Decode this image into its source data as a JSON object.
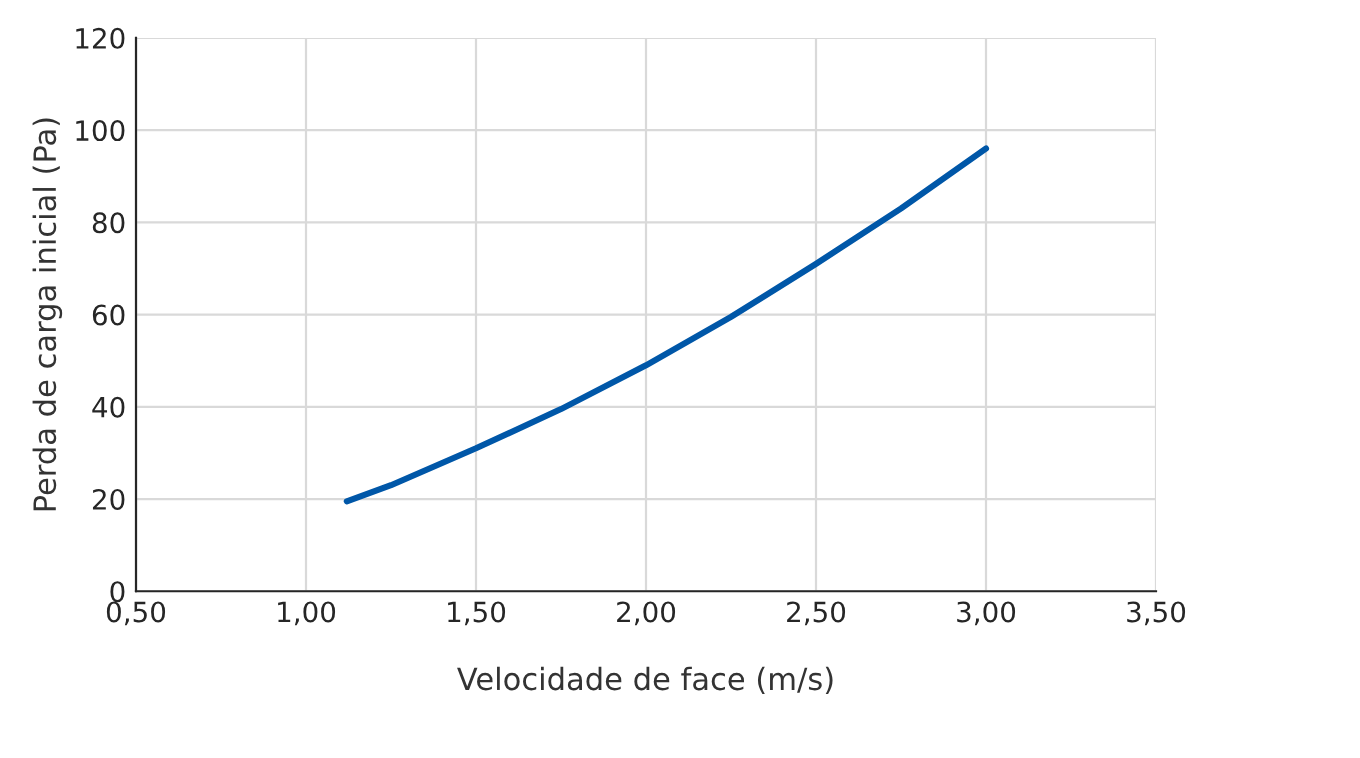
{
  "chart_data": {
    "type": "line",
    "xlabel": "Velocidade de face (m/s)",
    "ylabel": "Perda de carga inicial (Pa)",
    "x": [
      1.12,
      1.25,
      1.5,
      1.75,
      2.0,
      2.25,
      2.5,
      2.75,
      3.0
    ],
    "series": [
      {
        "color": "#0057a8",
        "values": [
          19.5,
          23,
          31,
          39.5,
          49,
          59.5,
          71,
          83,
          96
        ]
      }
    ],
    "xlim": [
      0.5,
      3.5
    ],
    "xticks": [
      {
        "value": 0.5,
        "label": "0,50"
      },
      {
        "value": 1.0,
        "label": "1,00"
      },
      {
        "value": 1.5,
        "label": "1,50"
      },
      {
        "value": 2.0,
        "label": "2,00"
      },
      {
        "value": 2.5,
        "label": "2,50"
      },
      {
        "value": 3.0,
        "label": "3,00"
      },
      {
        "value": 3.5,
        "label": "3,50"
      }
    ],
    "ylim": [
      0,
      120
    ],
    "yticks": [
      0,
      20,
      40,
      60,
      80,
      100,
      120
    ],
    "grid": true,
    "marker": "none",
    "line_style": "solid"
  }
}
